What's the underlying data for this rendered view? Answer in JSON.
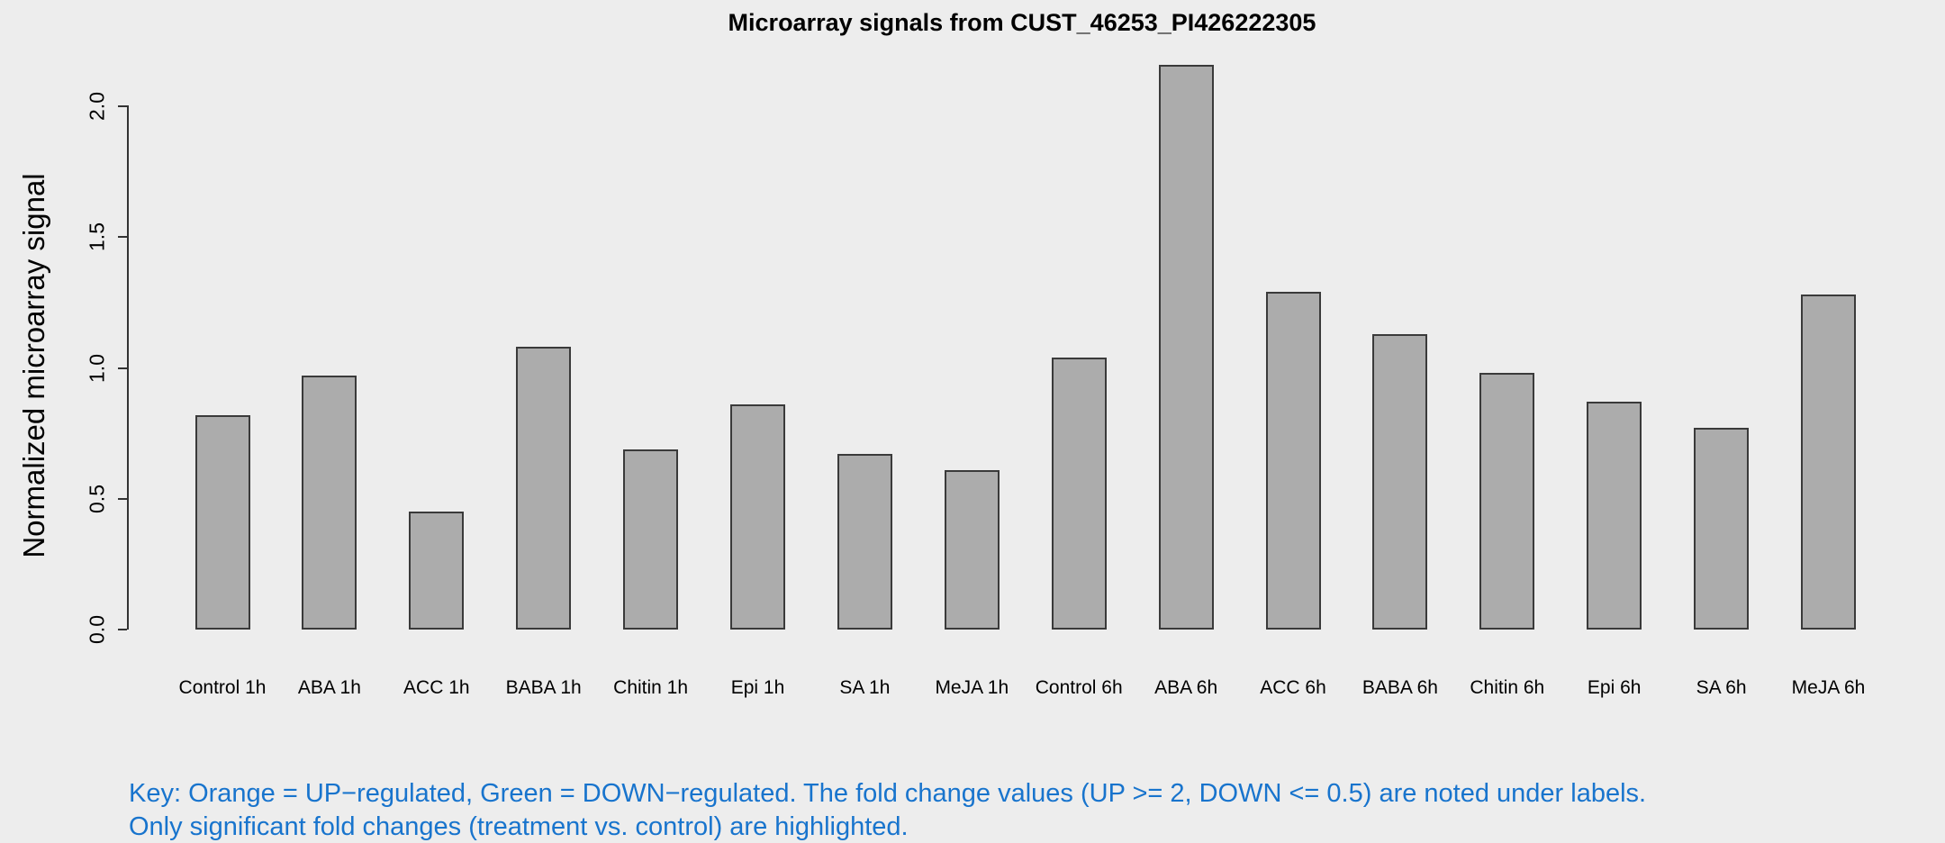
{
  "page": {
    "background": "#EDEDED"
  },
  "chart_data": {
    "type": "bar",
    "title": "Microarray signals from CUST_46253_PI426222305",
    "ylabel": "Normalized microarray signal",
    "xlabel": "",
    "categories": [
      "Control 1h",
      "ABA 1h",
      "ACC 1h",
      "BABA 1h",
      "Chitin 1h",
      "Epi 1h",
      "SA 1h",
      "MeJA 1h",
      "Control 6h",
      "ABA 6h",
      "ACC 6h",
      "BABA 6h",
      "Chitin 6h",
      "Epi 6h",
      "SA 6h",
      "MeJA 6h"
    ],
    "values": [
      0.82,
      0.97,
      0.45,
      1.08,
      0.69,
      0.86,
      0.67,
      0.61,
      1.04,
      2.16,
      1.29,
      1.13,
      0.98,
      0.87,
      0.77,
      1.28
    ],
    "ylim": [
      0,
      2.0
    ],
    "ytick_labels": [
      "0.0",
      "0.5",
      "1.0",
      "1.5",
      "2.0"
    ],
    "ytick_values": [
      0,
      0.5,
      1.0,
      1.5,
      2.0
    ],
    "grid": false,
    "legend_position": "none",
    "bar_fill": "#ACACAC",
    "bar_border": "#3A3A3A",
    "axis_color": "#333333",
    "text_color": "#000000"
  },
  "note": {
    "line1": "Key: Orange = UP−regulated, Green = DOWN−regulated. The fold change values (UP >= 2, DOWN <= 0.5) are noted under labels.",
    "line2": "Only significant fold changes (treatment vs. control) are highlighted.",
    "color": "#1874CD"
  }
}
